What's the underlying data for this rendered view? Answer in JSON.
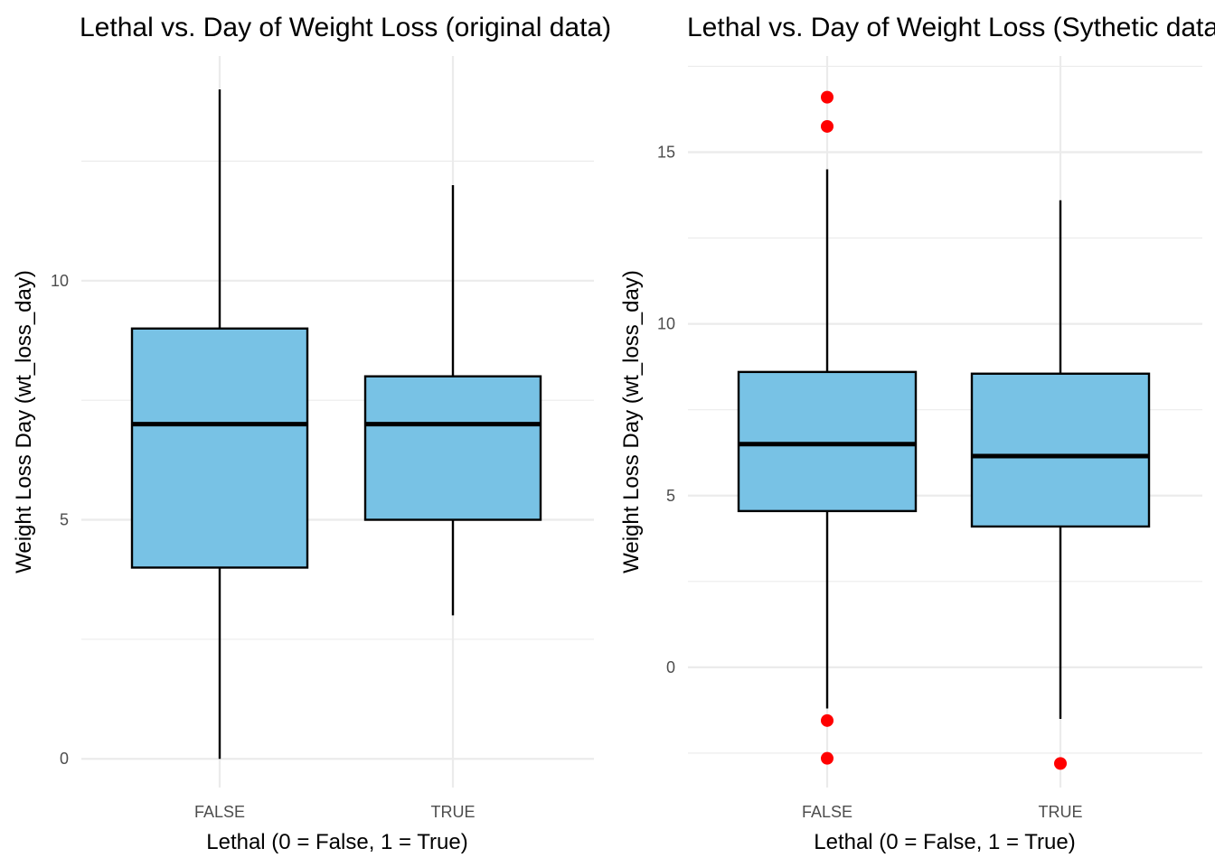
{
  "chart_data": [
    {
      "type": "boxplot",
      "title": "Lethal vs. Day of Weight Loss (original data)",
      "xlabel": "Lethal (0 = False, 1 = True)",
      "ylabel": "Weight Loss Day (wt_loss_day)",
      "categories": [
        "FALSE",
        "TRUE"
      ],
      "y_ticks": [
        0,
        5,
        10
      ],
      "ylim": [
        -0.6,
        14.7
      ],
      "grid": true,
      "box_fill": "#78c2e5",
      "outlier_color": "#ff0000",
      "boxes": [
        {
          "category": "FALSE",
          "min": 0,
          "q1": 4,
          "median": 7,
          "q3": 9,
          "max": 14,
          "outliers": []
        },
        {
          "category": "TRUE",
          "min": 3,
          "q1": 5,
          "median": 7,
          "q3": 8,
          "max": 12,
          "outliers": []
        }
      ]
    },
    {
      "type": "boxplot",
      "title": "Lethal vs. Day of Weight Loss (Sythetic data)",
      "xlabel": "Lethal (0 = False, 1 = True)",
      "ylabel": "Weight Loss Day (wt_loss_day)",
      "categories": [
        "FALSE",
        "TRUE"
      ],
      "y_ticks": [
        0,
        5,
        10,
        15
      ],
      "ylim": [
        -3.5,
        17.8
      ],
      "grid": true,
      "box_fill": "#78c2e5",
      "outlier_color": "#ff0000",
      "boxes": [
        {
          "category": "FALSE",
          "min": -1.2,
          "q1": 4.55,
          "median": 6.5,
          "q3": 8.6,
          "max": 14.5,
          "outliers": [
            16.6,
            15.75,
            -1.55,
            -2.65
          ]
        },
        {
          "category": "TRUE",
          "min": -1.5,
          "q1": 4.1,
          "median": 6.15,
          "q3": 8.55,
          "max": 13.6,
          "outliers": [
            -2.8
          ]
        }
      ]
    }
  ]
}
